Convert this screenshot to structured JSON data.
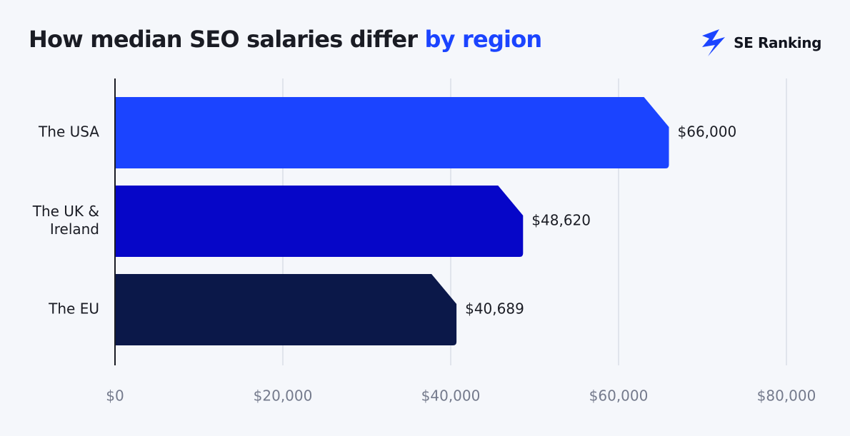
{
  "header": {
    "title_main": "How median SEO salaries differ ",
    "title_accent": "by region"
  },
  "logo": {
    "text": "SE Ranking",
    "icon": "se-ranking-bolt-icon"
  },
  "colors": {
    "accent": "#1b44ff",
    "bar_usa": "#1b44ff",
    "bar_uk": "#0606c8",
    "bar_eu": "#0b1849",
    "grid": "#d9dde7",
    "axis": "#1a1c24"
  },
  "chart_data": {
    "type": "bar",
    "orientation": "horizontal",
    "title": "How median SEO salaries differ by region",
    "categories": [
      "The USA",
      "The UK & Ireland",
      "The EU"
    ],
    "category_lines": [
      [
        "The USA"
      ],
      [
        "The UK &",
        "Ireland"
      ],
      [
        "The EU"
      ]
    ],
    "values": [
      66000,
      48620,
      40689
    ],
    "value_labels": [
      "$66,000",
      "$48,620",
      "$40,689"
    ],
    "bar_colors": [
      "#1b44ff",
      "#0606c8",
      "#0b1849"
    ],
    "xlim": [
      0,
      80000
    ],
    "ticks": [
      0,
      20000,
      40000,
      60000,
      80000
    ],
    "tick_labels": [
      "$0",
      "$20,000",
      "$40,000",
      "$60,000",
      "$80,000"
    ],
    "grid": true,
    "legend": "none"
  }
}
